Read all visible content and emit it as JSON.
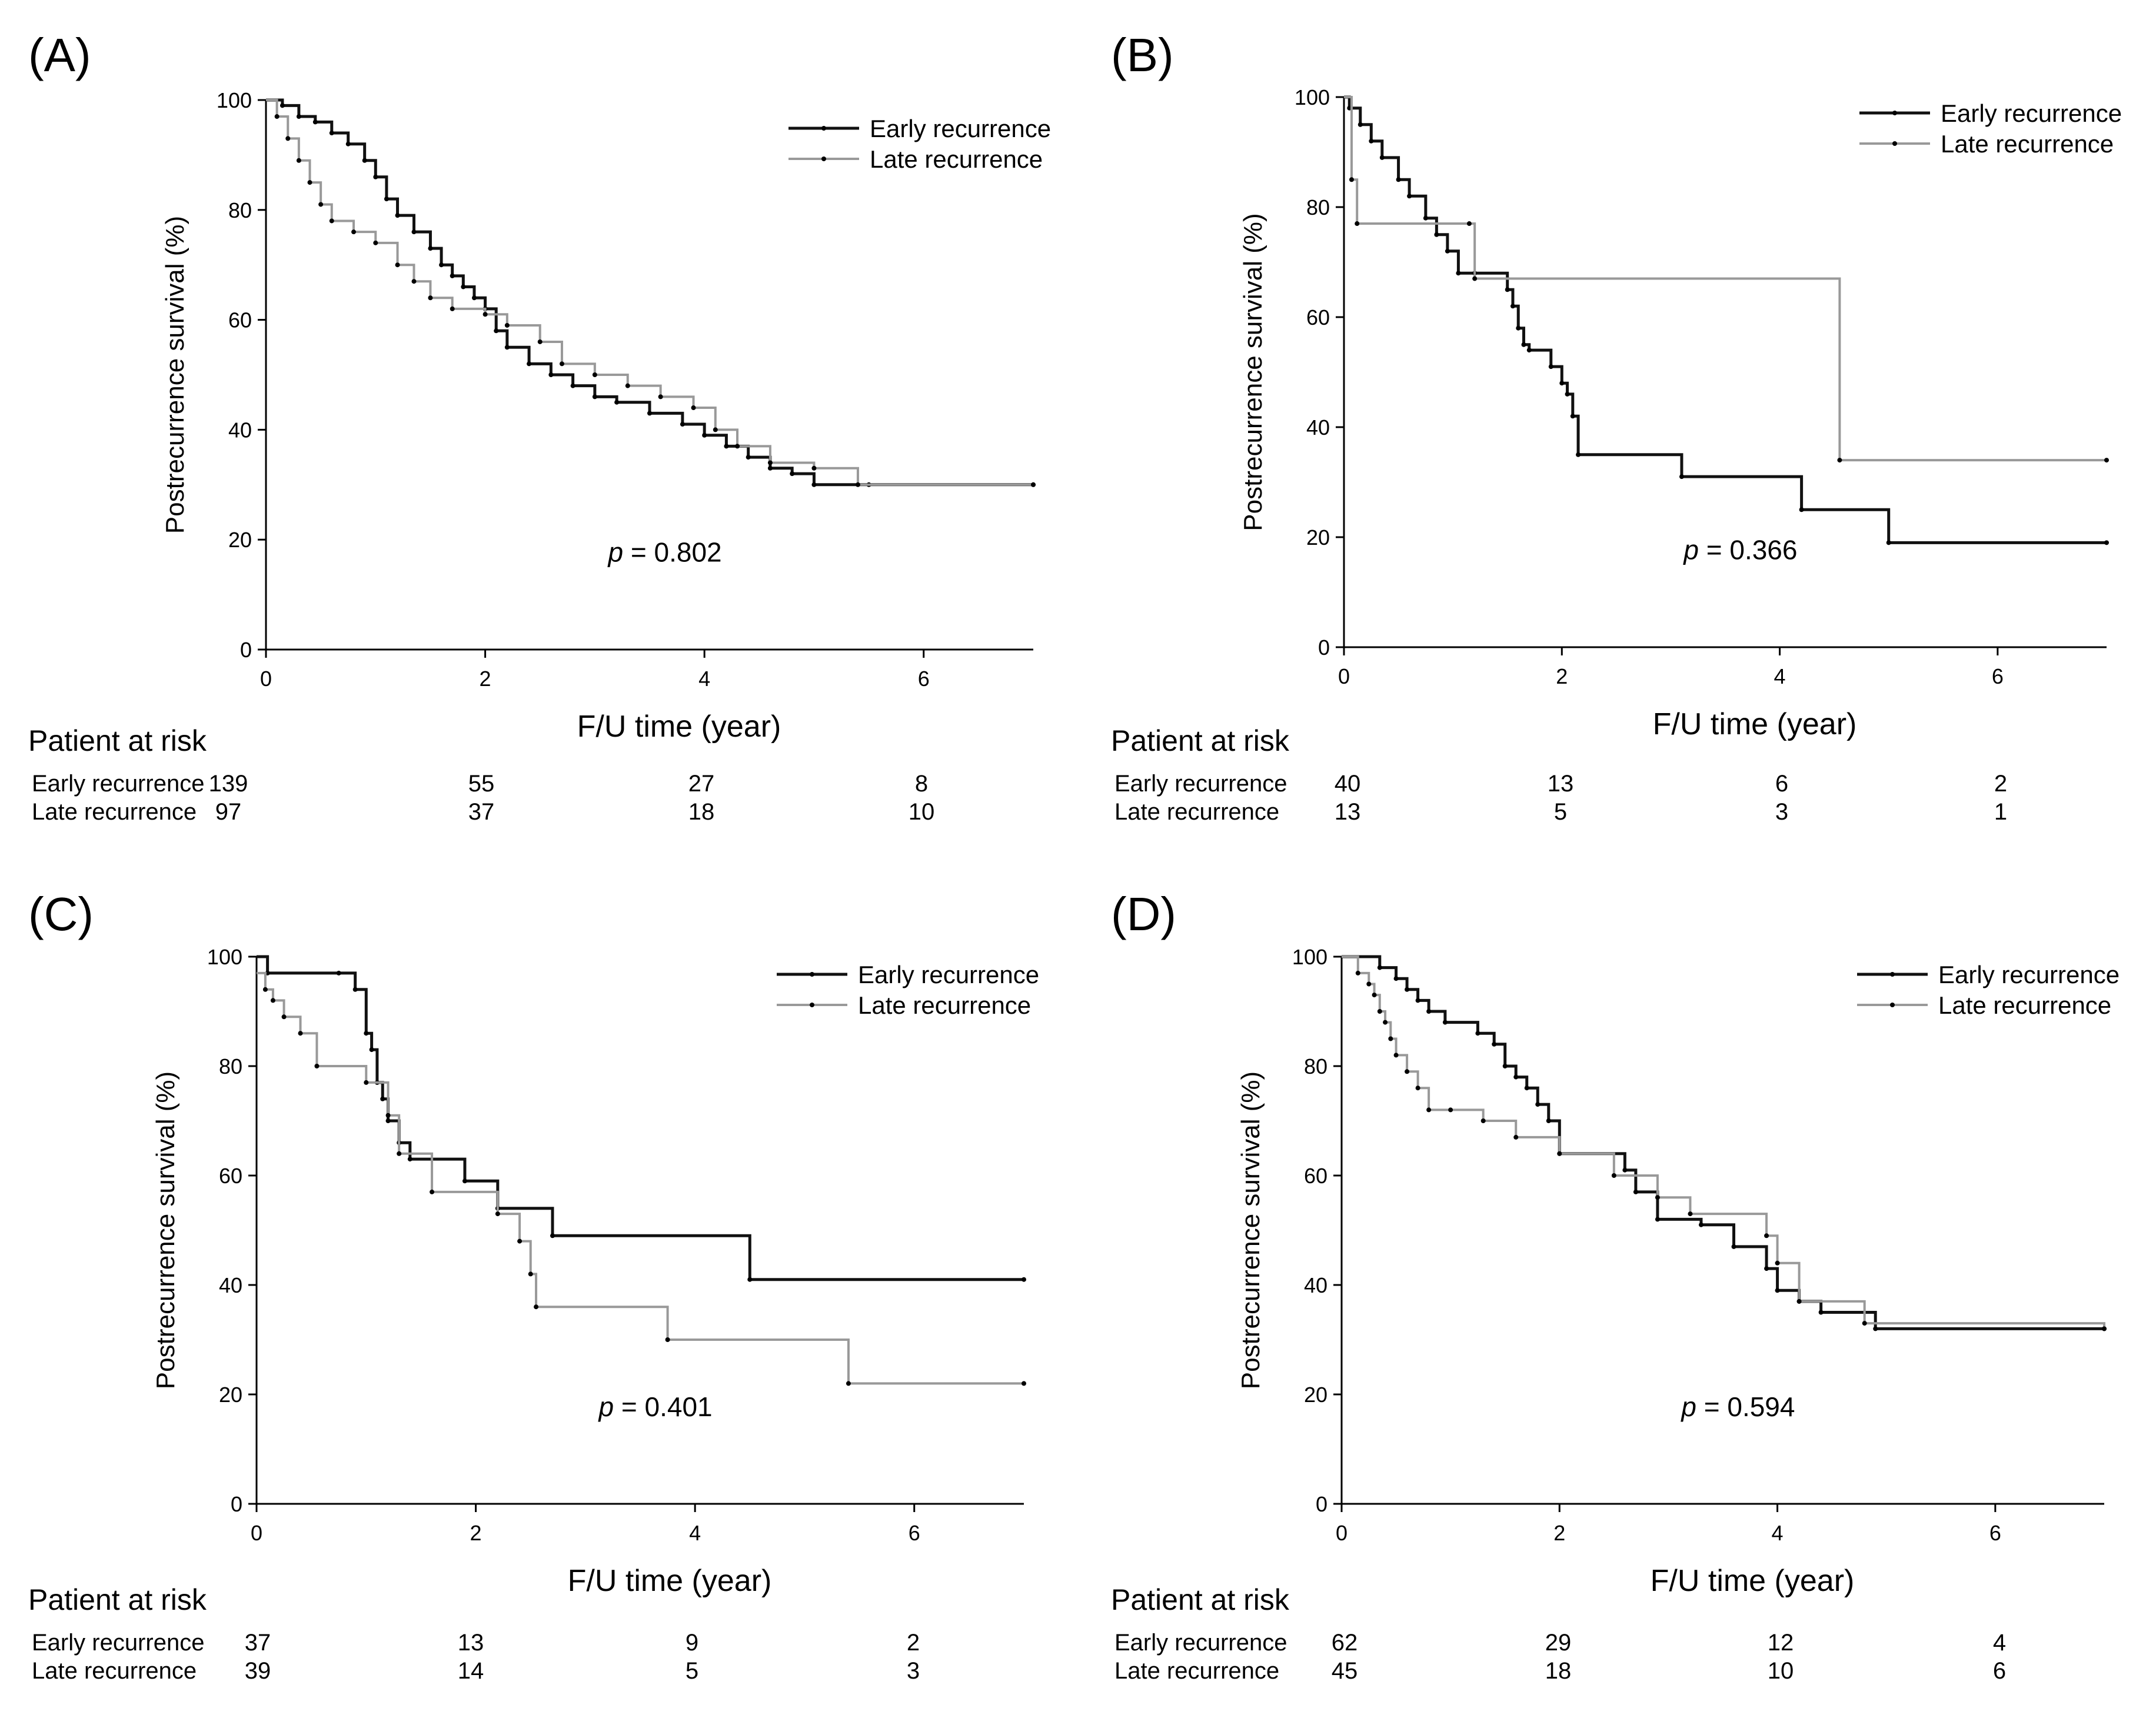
{
  "risk_title": "Patient at risk",
  "axis_xlabel": "F/U time (year)",
  "axis_ylabel": "Postrecurrence survival (%)",
  "legend": {
    "early": "Early recurrence",
    "late": "Late recurrence"
  },
  "colors": {
    "early": "#111111",
    "late": "#999999"
  },
  "panels": [
    {
      "id": "A",
      "label": "(A)",
      "p_value": "= 0.802",
      "risk": {
        "early": [
          "139",
          "55",
          "27",
          "8"
        ],
        "late": [
          "97",
          "37",
          "18",
          "10"
        ]
      }
    },
    {
      "id": "B",
      "label": "(B)",
      "p_value": "= 0.366",
      "risk": {
        "early": [
          "40",
          "13",
          "6",
          "2"
        ],
        "late": [
          "13",
          "5",
          "3",
          "1"
        ]
      }
    },
    {
      "id": "C",
      "label": "(C)",
      "p_value": "= 0.401",
      "risk": {
        "early": [
          "37",
          "13",
          "9",
          "2"
        ],
        "late": [
          "39",
          "14",
          "5",
          "3"
        ]
      }
    },
    {
      "id": "D",
      "label": "(D)",
      "p_value": "= 0.594",
      "risk": {
        "early": [
          "62",
          "29",
          "12",
          "4"
        ],
        "late": [
          "45",
          "18",
          "10",
          "6"
        ]
      }
    }
  ],
  "chart_data": [
    {
      "panel": "A",
      "type": "line",
      "step": true,
      "xlabel": "F/U time (year)",
      "ylabel": "Postrecurrence survival (%)",
      "xlim": [
        0,
        7
      ],
      "ylim": [
        0,
        100
      ],
      "xticks": [
        0,
        2,
        4,
        6
      ],
      "yticks": [
        0,
        20,
        40,
        60,
        80,
        100
      ],
      "legend_position": "top-right",
      "annotation": "p = 0.802",
      "series": [
        {
          "name": "Early recurrence",
          "x": [
            0,
            0.15,
            0.3,
            0.45,
            0.6,
            0.75,
            0.9,
            1.0,
            1.1,
            1.2,
            1.35,
            1.5,
            1.6,
            1.7,
            1.8,
            1.9,
            2.0,
            2.1,
            2.2,
            2.4,
            2.6,
            2.8,
            3.0,
            3.2,
            3.5,
            3.8,
            4.0,
            4.2,
            4.4,
            4.6,
            4.8,
            5.0,
            5.5,
            7.0
          ],
          "y": [
            100,
            99,
            97,
            96,
            94,
            92,
            89,
            86,
            82,
            79,
            76,
            73,
            70,
            68,
            66,
            64,
            62,
            58,
            55,
            52,
            50,
            48,
            46,
            45,
            43,
            41,
            39,
            37,
            35,
            33,
            32,
            30,
            30,
            30
          ]
        },
        {
          "name": "Late recurrence",
          "x": [
            0,
            0.1,
            0.2,
            0.3,
            0.4,
            0.5,
            0.6,
            0.8,
            1.0,
            1.2,
            1.35,
            1.5,
            1.7,
            2.0,
            2.2,
            2.5,
            2.7,
            3.0,
            3.3,
            3.6,
            3.9,
            4.1,
            4.3,
            4.6,
            5.0,
            5.4,
            7.0
          ],
          "y": [
            100,
            97,
            93,
            89,
            85,
            81,
            78,
            76,
            74,
            70,
            67,
            64,
            62,
            61,
            59,
            56,
            52,
            50,
            48,
            46,
            44,
            40,
            37,
            34,
            33,
            30,
            30
          ]
        }
      ]
    },
    {
      "panel": "B",
      "type": "line",
      "step": true,
      "xlabel": "F/U time (year)",
      "ylabel": "Postrecurrence survival (%)",
      "xlim": [
        0,
        7
      ],
      "ylim": [
        0,
        100
      ],
      "xticks": [
        0,
        2,
        4,
        6
      ],
      "yticks": [
        0,
        20,
        40,
        60,
        80,
        100
      ],
      "legend_position": "top-right",
      "annotation": "p = 0.366",
      "series": [
        {
          "name": "Early recurrence",
          "x": [
            0,
            0.05,
            0.15,
            0.25,
            0.35,
            0.5,
            0.6,
            0.75,
            0.85,
            0.95,
            1.05,
            1.2,
            1.5,
            1.55,
            1.6,
            1.65,
            1.7,
            1.9,
            2.0,
            2.05,
            2.1,
            2.15,
            3.1,
            4.2,
            5.0,
            7.0
          ],
          "y": [
            100,
            98,
            95,
            92,
            89,
            85,
            82,
            78,
            75,
            72,
            68,
            68,
            65,
            62,
            58,
            55,
            54,
            51,
            48,
            46,
            42,
            35,
            31,
            25,
            19,
            19
          ]
        },
        {
          "name": "Late recurrence",
          "x": [
            0,
            0.07,
            0.12,
            1.15,
            1.2,
            4.55,
            7.0
          ],
          "y": [
            100,
            85,
            77,
            77,
            67,
            34,
            34
          ]
        }
      ]
    },
    {
      "panel": "C",
      "type": "line",
      "step": true,
      "xlabel": "F/U time (year)",
      "ylabel": "Postrecurrence survival (%)",
      "xlim": [
        0,
        7
      ],
      "ylim": [
        0,
        100
      ],
      "xticks": [
        0,
        2,
        4,
        6
      ],
      "yticks": [
        0,
        20,
        40,
        60,
        80,
        100
      ],
      "legend_position": "top-right",
      "annotation": "p = 0.401",
      "series": [
        {
          "name": "Early recurrence",
          "x": [
            0,
            0.1,
            0.75,
            0.9,
            1.0,
            1.05,
            1.1,
            1.15,
            1.2,
            1.3,
            1.4,
            1.9,
            2.2,
            2.7,
            4.5,
            7.0
          ],
          "y": [
            100,
            97,
            97,
            94,
            86,
            83,
            77,
            74,
            70,
            66,
            63,
            59,
            54,
            49,
            41,
            41
          ]
        },
        {
          "name": "Late recurrence",
          "x": [
            0,
            0.08,
            0.15,
            0.25,
            0.4,
            0.55,
            1.0,
            1.2,
            1.3,
            1.6,
            2.2,
            2.4,
            2.5,
            2.55,
            3.75,
            5.4,
            7.0
          ],
          "y": [
            97,
            94,
            92,
            89,
            86,
            80,
            77,
            71,
            64,
            57,
            53,
            48,
            42,
            36,
            30,
            22,
            22
          ]
        }
      ]
    },
    {
      "panel": "D",
      "type": "line",
      "step": true,
      "xlabel": "F/U time (year)",
      "ylabel": "Postrecurrence survival (%)",
      "xlim": [
        0,
        7
      ],
      "ylim": [
        0,
        100
      ],
      "xticks": [
        0,
        2,
        4,
        6
      ],
      "yticks": [
        0,
        20,
        40,
        60,
        80,
        100
      ],
      "legend_position": "top-right",
      "annotation": "p = 0.594",
      "series": [
        {
          "name": "Early recurrence",
          "x": [
            0,
            0.35,
            0.5,
            0.6,
            0.7,
            0.8,
            0.95,
            1.25,
            1.4,
            1.5,
            1.6,
            1.7,
            1.8,
            1.9,
            2.0,
            2.6,
            2.7,
            2.9,
            3.3,
            3.6,
            3.9,
            4.0,
            4.2,
            4.4,
            4.9,
            7.0
          ],
          "y": [
            100,
            98,
            96,
            94,
            92,
            90,
            88,
            86,
            84,
            80,
            78,
            76,
            73,
            70,
            64,
            61,
            57,
            52,
            51,
            47,
            43,
            39,
            37,
            35,
            32,
            32
          ]
        },
        {
          "name": "Late recurrence",
          "x": [
            0,
            0.15,
            0.25,
            0.3,
            0.35,
            0.4,
            0.45,
            0.5,
            0.6,
            0.7,
            0.8,
            1.0,
            1.3,
            1.6,
            2.0,
            2.5,
            2.9,
            3.2,
            3.9,
            4.0,
            4.2,
            4.8,
            7.0
          ],
          "y": [
            100,
            97,
            95,
            93,
            90,
            88,
            85,
            82,
            79,
            76,
            72,
            72,
            70,
            67,
            64,
            60,
            56,
            53,
            49,
            44,
            37,
            33,
            32
          ]
        }
      ]
    }
  ]
}
